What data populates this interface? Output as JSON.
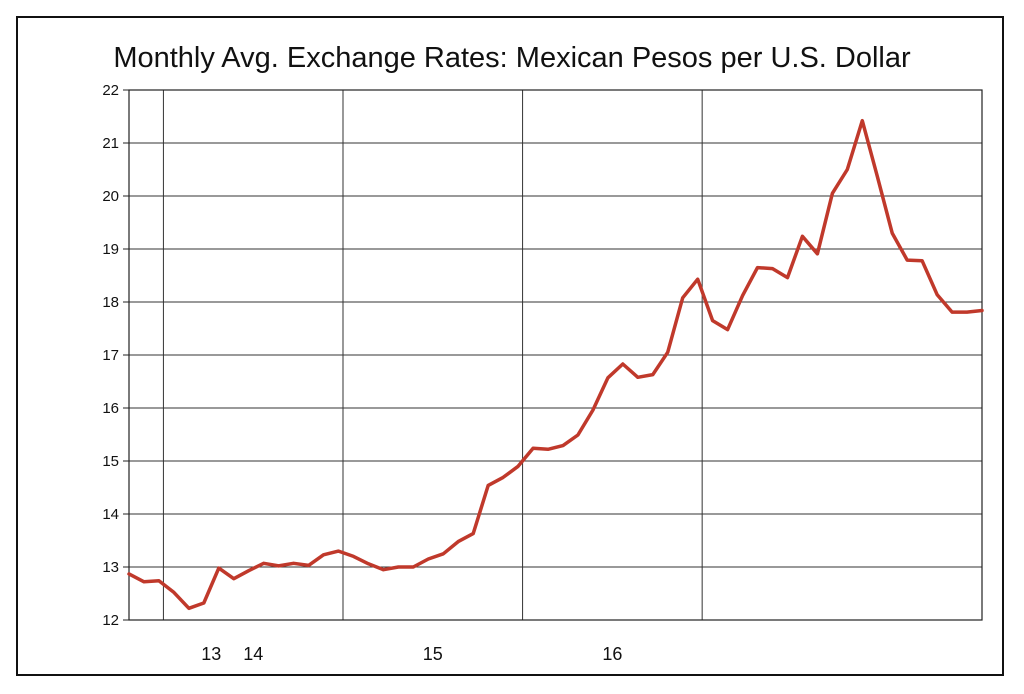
{
  "chart_data": {
    "type": "line",
    "title": "Monthly Avg. Exchange Rates: Mexican Pesos per U.S. Dollar",
    "xlabel": "",
    "ylabel": "",
    "ylim": [
      12,
      22
    ],
    "y_ticks": [
      12,
      13,
      14,
      15,
      16,
      17,
      18,
      19,
      20,
      21,
      22
    ],
    "x_tick_labels": [
      "13",
      "14",
      "15",
      "16"
    ],
    "grid": true,
    "legend": "none",
    "series": [
      {
        "color": "#c0392b",
        "values": [
          12.87,
          12.72,
          12.74,
          12.52,
          12.22,
          12.32,
          12.98,
          12.78,
          12.93,
          13.07,
          13.02,
          13.07,
          13.03,
          13.23,
          13.3,
          13.2,
          13.06,
          12.95,
          13.0,
          13.0,
          13.15,
          13.25,
          13.48,
          13.63,
          14.54,
          14.69,
          14.9,
          15.24,
          15.22,
          15.29,
          15.49,
          15.96,
          16.57,
          16.83,
          16.58,
          16.63,
          17.05,
          18.08,
          18.43,
          17.65,
          17.48,
          18.12,
          18.65,
          18.63,
          18.46,
          19.24,
          18.91,
          20.05,
          20.5,
          21.42,
          20.38,
          19.3,
          18.79,
          18.78,
          18.14,
          17.81,
          17.81,
          17.84
        ]
      }
    ]
  }
}
